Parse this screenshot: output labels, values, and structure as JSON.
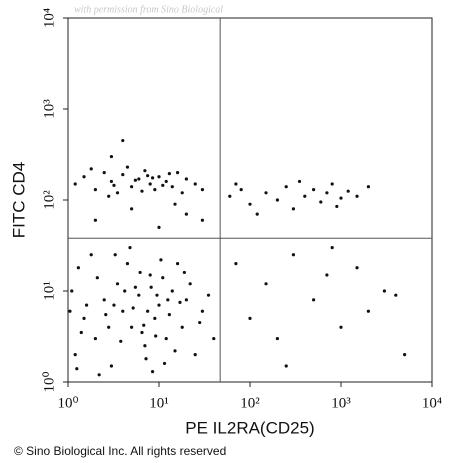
{
  "chart_data": {
    "type": "scatter",
    "watermark": "with permission from Sino Biological",
    "x_label": "PE IL2RA(CD25)",
    "y_label": "FITC CD4",
    "footer": "© Sino Biological Inc. All rights reserved",
    "log_x": true,
    "log_y": true,
    "xlim": [
      1,
      10000
    ],
    "ylim": [
      1,
      10000
    ],
    "xticks": [
      {
        "value": 1,
        "label": "10⁰"
      },
      {
        "value": 10,
        "label": "10¹"
      },
      {
        "value": 100,
        "label": "10²"
      },
      {
        "value": 1000,
        "label": "10³"
      },
      {
        "value": 10000,
        "label": "10⁴"
      }
    ],
    "yticks": [
      {
        "value": 1,
        "label": "10⁰"
      },
      {
        "value": 10,
        "label": "10¹"
      },
      {
        "value": 100,
        "label": "10²"
      },
      {
        "value": 1000,
        "label": "10³"
      },
      {
        "value": 10000,
        "label": "10⁴"
      }
    ],
    "quadrant": {
      "x": 47,
      "y": 38
    },
    "color": "#111111",
    "x": [
      1.2,
      1.5,
      2,
      2.5,
      3,
      3.5,
      4,
      5,
      6,
      7,
      8,
      9,
      10,
      12,
      14,
      16,
      18,
      20,
      25,
      30,
      1.1,
      1.3,
      1.8,
      2.2,
      2.8,
      3.2,
      4.5,
      5.5,
      6.5,
      7.5,
      8.5,
      9.5,
      11,
      13,
      15,
      17,
      22,
      28,
      35,
      40,
      1.4,
      1.6,
      2.1,
      2.6,
      3.8,
      4.2,
      4.8,
      5.2,
      6.2,
      7.2,
      8.2,
      9.2,
      10.5,
      12.5,
      1.05,
      1.25,
      3.3,
      6.8,
      11.5,
      19,
      1.2,
      1.5,
      2,
      2.5,
      3,
      3.5,
      4,
      5,
      6,
      7,
      8,
      9,
      10,
      12,
      14,
      16,
      18,
      20,
      25,
      30,
      1.8,
      2.8,
      4.5,
      5.5,
      6.5,
      7.5,
      11,
      13,
      3.2,
      8.5,
      60,
      80,
      100,
      150,
      200,
      250,
      300,
      400,
      500,
      600,
      700,
      800,
      1000,
      1200,
      1500,
      2000,
      120,
      350,
      900,
      70,
      2,
      5,
      10,
      20,
      3,
      4,
      15,
      30,
      70,
      100,
      150,
      200,
      300,
      500,
      700,
      1000,
      1500,
      2000,
      3000,
      5000,
      4000,
      250,
      800
    ],
    "values": [
      2,
      5,
      3,
      8,
      1.5,
      12,
      6,
      4,
      9,
      2.5,
      15,
      5,
      7,
      3,
      10,
      20,
      4,
      8,
      2,
      6,
      10,
      18,
      25,
      1.2,
      4,
      7,
      20,
      11,
      3.5,
      6,
      1.3,
      9,
      14,
      5.5,
      2.2,
      7.5,
      12,
      4.5,
      9,
      3,
      3.5,
      7,
      14,
      5.5,
      2.8,
      10,
      30,
      6.5,
      16,
      1.8,
      11,
      3.2,
      22,
      8,
      6,
      1.4,
      25,
      4.2,
      1.6,
      16,
      150,
      180,
      130,
      200,
      160,
      120,
      190,
      140,
      170,
      210,
      150,
      130,
      180,
      160,
      140,
      200,
      120,
      170,
      150,
      130,
      220,
      110,
      230,
      165,
      125,
      185,
      145,
      195,
      145,
      175,
      110,
      130,
      90,
      120,
      100,
      140,
      80,
      110,
      130,
      95,
      120,
      150,
      105,
      125,
      110,
      140,
      70,
      160,
      85,
      150,
      60,
      80,
      50,
      70,
      300,
      450,
      90,
      60,
      20,
      5,
      12,
      3,
      25,
      8,
      15,
      4,
      18,
      6,
      10,
      2,
      9,
      1.5,
      30
    ]
  }
}
